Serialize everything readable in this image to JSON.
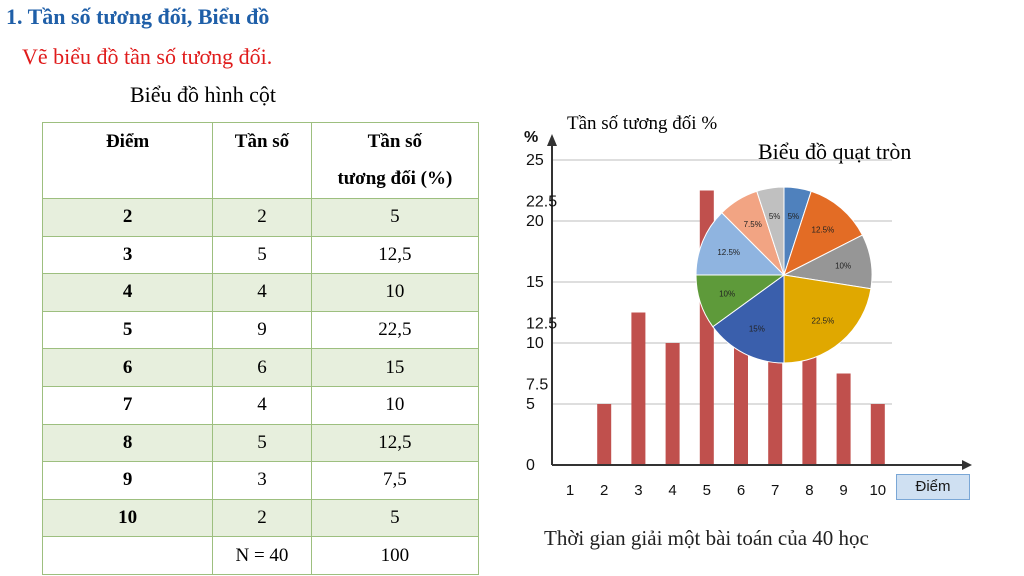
{
  "title": "1. Tần số tương đối, Biểu đồ",
  "subtitle": "Vẽ biểu đồ tần số tương đối.",
  "bar_heading": "Biểu đồ hình cột",
  "table": {
    "headers": [
      "Điểm",
      "Tần số",
      "Tần số tương đối (%)"
    ],
    "header_line1": "Tần số",
    "header_line2": "tương đối (%)",
    "rows": [
      [
        "2",
        "2",
        "5"
      ],
      [
        "3",
        "5",
        "12,5"
      ],
      [
        "4",
        "4",
        "10"
      ],
      [
        "5",
        "9",
        "22,5"
      ],
      [
        "6",
        "6",
        "15"
      ],
      [
        "7",
        "4",
        "10"
      ],
      [
        "8",
        "5",
        "12,5"
      ],
      [
        "9",
        "3",
        "7,5"
      ],
      [
        "10",
        "2",
        "5"
      ]
    ],
    "total": [
      "",
      "N = 40",
      "100"
    ]
  },
  "chart_labels": {
    "y_unit": "%",
    "y_title": "Tần số tương đối %",
    "x_title": "Điểm",
    "pie_title": "Biểu đồ quạt tròn",
    "caption": "Thời gian giải một bài toán của 40 học"
  },
  "chart_data": [
    {
      "type": "bar",
      "categories": [
        "1",
        "2",
        "3",
        "4",
        "5",
        "6",
        "7",
        "8",
        "9",
        "10"
      ],
      "values": [
        0,
        5,
        12.5,
        10,
        22.5,
        15,
        10,
        12.5,
        7.5,
        5
      ],
      "yticks": [
        "0",
        "5",
        "10",
        "15",
        "20",
        "25"
      ],
      "extra_yticks": [
        "7.5",
        "12.5",
        "22.5"
      ],
      "ylim": [
        0,
        25
      ],
      "ylabel": "%",
      "xlabel": "Điểm",
      "grid": true,
      "color": "#c0504d"
    },
    {
      "type": "pie",
      "title": "Biểu đồ quạt tròn",
      "slices": [
        {
          "label": "5%",
          "value": 5,
          "color": "#4f81bd"
        },
        {
          "label": "12.5%",
          "value": 12.5,
          "color": "#e36c25"
        },
        {
          "label": "10%",
          "value": 10,
          "color": "#969696"
        },
        {
          "label": "22.5%",
          "value": 22.5,
          "color": "#e0a800"
        },
        {
          "label": "15%",
          "value": 15,
          "color": "#3a5fac"
        },
        {
          "label": "10%",
          "value": 10,
          "color": "#5e9a3a"
        },
        {
          "label": "12.5%",
          "value": 12.5,
          "color": "#8fb4e0"
        },
        {
          "label": "7.5%",
          "value": 7.5,
          "color": "#f2a483"
        },
        {
          "label": "5%",
          "value": 5,
          "color": "#c0c0c0"
        }
      ]
    }
  ]
}
